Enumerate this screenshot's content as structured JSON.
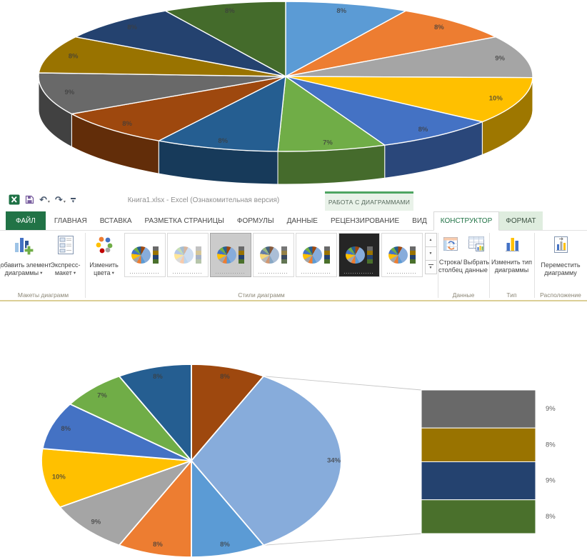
{
  "theme": {
    "excel_green": "#217346",
    "contextual_tab_green": "#4EA562",
    "contextual_tab_bg": "#E9F2E9",
    "format_tab_bg": "#DFEDDF",
    "ribbon_bottom_border": "#DBCF96",
    "ribbon_text": "#444444",
    "group_label_text": "#8B8675"
  },
  "titlebar": {
    "title": "Книга1.xlsx - Excel (Ознакомительная версия)",
    "contextual_tab_group": "РАБОТА С ДИАГРАММАМИ",
    "quick_access": [
      {
        "name": "excel-logo",
        "icon": "excel-logo-icon"
      },
      {
        "name": "save",
        "icon": "save-icon"
      },
      {
        "name": "undo",
        "icon": "undo-icon",
        "dropdown": true
      },
      {
        "name": "redo",
        "icon": "redo-icon",
        "dropdown": true
      },
      {
        "name": "customize-quick-access",
        "icon": "customize-quick-access-icon"
      }
    ]
  },
  "tabs": [
    {
      "label": "ФАЙЛ",
      "state": "file"
    },
    {
      "label": "ГЛАВНАЯ"
    },
    {
      "label": "ВСТАВКА"
    },
    {
      "label": "РАЗМЕТКА СТРАНИЦЫ"
    },
    {
      "label": "ФОРМУЛЫ"
    },
    {
      "label": "ДАННЫЕ"
    },
    {
      "label": "РЕЦЕНЗИРОВАНИЕ"
    },
    {
      "label": "ВИД"
    },
    {
      "label": "КОНСТРУКТОР",
      "state": "active"
    },
    {
      "label": "ФОРМАТ",
      "state": "contextual"
    }
  ],
  "ribbon": {
    "groups": {
      "layouts": {
        "label": "Макеты диаграмм",
        "add_element": {
          "line1": "Добавить элемент",
          "line2": "диаграммы",
          "dropdown": true,
          "icon": "add-chart-element-icon"
        },
        "quick_layout": {
          "line1": "Экспресс-",
          "line2": "макет",
          "dropdown": true,
          "icon": "quick-layout-icon"
        }
      },
      "styles": {
        "label": "Стили диаграмм",
        "change_colors": {
          "line1": "Изменить",
          "line2": "цвета",
          "dropdown": true,
          "icon": "change-colors-icon"
        },
        "gallery": {
          "selected_index": 2,
          "variants": [
            "color",
            "outline",
            "selected",
            "muted",
            "color",
            "black",
            "color"
          ]
        }
      },
      "data": {
        "label": "Данные",
        "row_column": {
          "line1": "Строка/",
          "line2": "столбец",
          "icon": "row-column-icon"
        },
        "select_data": {
          "line1": "Выбрать",
          "line2": "данные",
          "icon": "select-data-icon"
        }
      },
      "type": {
        "label": "Тип",
        "change_type": {
          "line1": "Изменить тип",
          "line2": "диаграммы",
          "icon": "change-chart-type-icon"
        }
      },
      "location": {
        "label": "Расположение",
        "move_chart": {
          "line1": "Переместить",
          "line2": "диаграмму",
          "icon": "move-chart-icon"
        }
      }
    }
  },
  "chart_data": [
    {
      "type": "pie",
      "variant": "3d-pie",
      "title": "",
      "legend": "none",
      "data_labels": "percent",
      "slices": [
        {
          "label": "8%",
          "value": 8,
          "color": "#5B9BD5"
        },
        {
          "label": "8%",
          "value": 8,
          "color": "#ED7D31"
        },
        {
          "label": "9%",
          "value": 9,
          "color": "#A5A5A5"
        },
        {
          "label": "10%",
          "value": 10,
          "color": "#FFC000"
        },
        {
          "label": "8%",
          "value": 8,
          "color": "#4472C4"
        },
        {
          "label": "7%",
          "value": 7,
          "color": "#70AD47"
        },
        {
          "label": "8%",
          "value": 8,
          "color": "#255E91"
        },
        {
          "label": "8%",
          "value": 8,
          "color": "#9E480E"
        },
        {
          "label": "9%",
          "value": 9,
          "color": "#696969"
        },
        {
          "label": "8%",
          "value": 8,
          "color": "#997300"
        },
        {
          "label": "8%",
          "value": 8,
          "color": "#24426F"
        },
        {
          "label": "8%",
          "value": 8,
          "color": "#446B2B"
        }
      ]
    },
    {
      "type": "bar-of-pie",
      "title": "",
      "legend": "none",
      "data_labels": "percent",
      "pie_slices": [
        {
          "label": "8%",
          "value": 8,
          "color": "#9E480E"
        },
        {
          "label": "34%",
          "value": 34,
          "color": "#87ACDB",
          "name": "other"
        },
        {
          "label": "8%",
          "value": 8,
          "color": "#5B9BD5"
        },
        {
          "label": "8%",
          "value": 8,
          "color": "#ED7D31"
        },
        {
          "label": "9%",
          "value": 9,
          "color": "#A5A5A5"
        },
        {
          "label": "10%",
          "value": 10,
          "color": "#FFC000"
        },
        {
          "label": "8%",
          "value": 8,
          "color": "#4472C4"
        },
        {
          "label": "7%",
          "value": 7,
          "color": "#70AD47"
        },
        {
          "label": "8%",
          "value": 8,
          "color": "#255E91"
        }
      ],
      "bar_segments": [
        {
          "label": "9%",
          "value": 9,
          "color": "#696969"
        },
        {
          "label": "8%",
          "value": 8,
          "color": "#997300"
        },
        {
          "label": "9%",
          "value": 9,
          "color": "#24426F"
        },
        {
          "label": "8%",
          "value": 8,
          "color": "#4A702C"
        }
      ]
    }
  ]
}
